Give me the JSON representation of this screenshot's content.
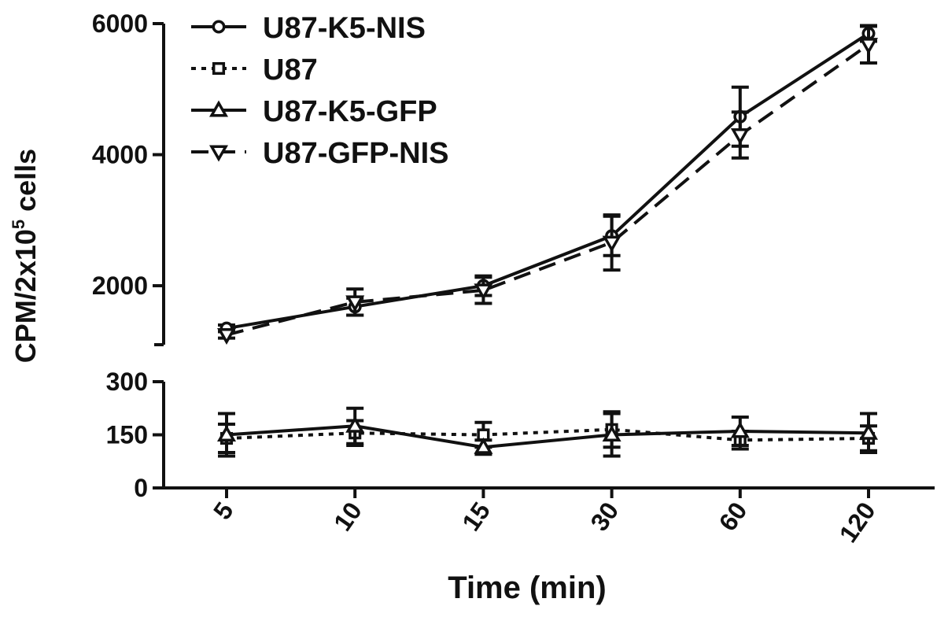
{
  "chart_data": {
    "type": "line",
    "categories": [
      "5",
      "10",
      "15",
      "30",
      "60",
      "120"
    ],
    "xlabel": "Time (min)",
    "ylabel_prefix": "CPM/2x10",
    "ylabel_sup": "5",
    "ylabel_suffix": " cells",
    "axis_break": true,
    "upper_panel": {
      "ylim": [
        1100,
        6000
      ],
      "yticks": [
        2000,
        4000,
        6000
      ]
    },
    "lower_panel": {
      "ylim": [
        0,
        300
      ],
      "yticks": [
        0,
        150,
        300
      ]
    },
    "legend_position": "top-left",
    "series": [
      {
        "name": "U87-K5-NIS",
        "marker": "circle",
        "dash": "solid",
        "panel": "upper",
        "values": [
          1350,
          1680,
          2000,
          2760,
          4580,
          5850
        ],
        "errors": [
          50,
          130,
          150,
          300,
          450,
          120
        ]
      },
      {
        "name": "U87",
        "marker": "square",
        "dash": "dotted",
        "panel": "lower",
        "values": [
          140,
          155,
          150,
          165,
          135,
          140
        ],
        "errors": [
          40,
          35,
          35,
          50,
          25,
          35
        ]
      },
      {
        "name": "U87-K5-GFP",
        "marker": "triangle-up",
        "dash": "solid",
        "panel": "lower",
        "values": [
          150,
          175,
          115,
          150,
          160,
          155
        ],
        "errors": [
          60,
          50,
          20,
          60,
          40,
          55
        ]
      },
      {
        "name": "U87-GFP-NIS",
        "marker": "triangle-down",
        "dash": "dashed",
        "panel": "upper",
        "values": [
          1250,
          1750,
          1930,
          2660,
          4300,
          5680
        ],
        "errors": [
          50,
          200,
          200,
          420,
          350,
          280
        ]
      }
    ]
  }
}
